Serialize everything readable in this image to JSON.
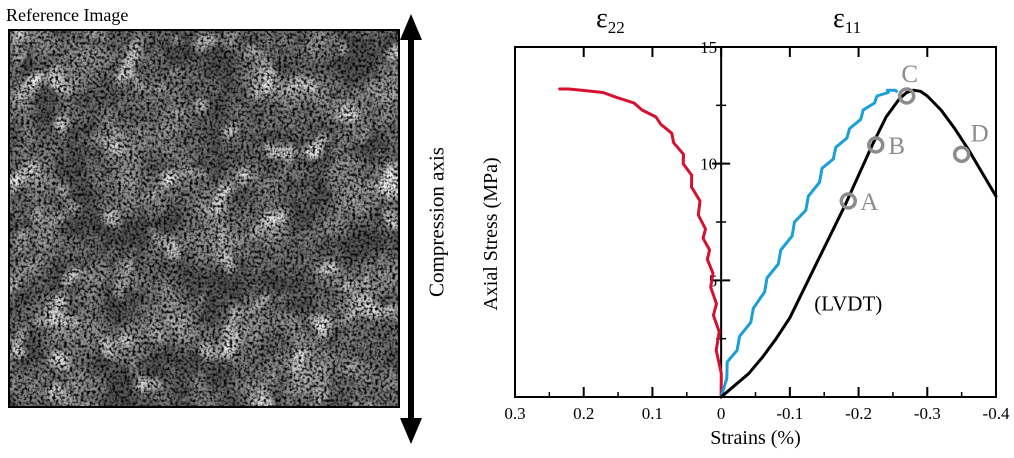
{
  "reference_image": {
    "label": "Reference Image"
  },
  "compression_axis": {
    "label": "Compression axis"
  },
  "panel_titles": {
    "eps22": {
      "symbol": "ε",
      "subscript": "22"
    },
    "eps11": {
      "symbol": "ε",
      "subscript": "11"
    }
  },
  "chart_data": {
    "type": "line",
    "title": "",
    "xlabel": "Strains (%)",
    "ylabel": "Axial Stress (MPa)",
    "xlim": [
      0.3,
      -0.4
    ],
    "ylim": [
      0,
      15
    ],
    "x_reversed": true,
    "x_ticks": [
      0.3,
      0.2,
      0.1,
      0,
      -0.1,
      -0.2,
      -0.3,
      -0.4
    ],
    "x_tick_labels": [
      "0.3",
      "0.2",
      "0.1",
      "0",
      "-0.1",
      "-0.2",
      "-0.3",
      "-0.4"
    ],
    "y_ticks": [
      5,
      10,
      15
    ],
    "y_tick_labels": [
      "5",
      "10",
      "15"
    ],
    "grid": false,
    "series": [
      {
        "color": "#d7102e",
        "x": [
          0.0,
          0.003,
          0.004,
          0.006,
          0.008,
          0.01,
          0.012,
          0.015,
          0.017,
          0.02,
          0.023,
          0.026,
          0.03,
          0.034,
          0.04,
          0.046,
          0.052,
          0.058,
          0.066,
          0.075,
          0.085,
          0.098,
          0.112,
          0.13,
          0.15,
          0.175,
          0.2,
          0.225,
          0.235
        ],
        "y": [
          0.0,
          1.0,
          2.0,
          2.8,
          3.5,
          4.0,
          4.7,
          5.3,
          5.9,
          6.3,
          6.8,
          7.2,
          7.8,
          8.4,
          9.0,
          9.5,
          10.0,
          10.4,
          10.9,
          11.3,
          11.7,
          12.0,
          12.3,
          12.6,
          12.85,
          13.05,
          13.15,
          13.2,
          13.2
        ]
      },
      {
        "color": "#1a9fd8",
        "x": [
          0.0,
          -0.005,
          -0.012,
          -0.02,
          -0.03,
          -0.04,
          -0.05,
          -0.06,
          -0.07,
          -0.08,
          -0.09,
          -0.1,
          -0.11,
          -0.12,
          -0.13,
          -0.14,
          -0.15,
          -0.16,
          -0.17,
          -0.18,
          -0.19,
          -0.2,
          -0.21,
          -0.22,
          -0.23,
          -0.24,
          -0.245,
          -0.25,
          -0.255
        ],
        "y": [
          0.0,
          0.8,
          1.5,
          2.0,
          2.6,
          3.2,
          3.8,
          4.5,
          5.1,
          5.7,
          6.3,
          6.9,
          7.5,
          8.0,
          8.6,
          9.2,
          9.8,
          10.2,
          10.7,
          11.1,
          11.5,
          11.9,
          12.3,
          12.6,
          12.9,
          13.05,
          13.15,
          13.15,
          13.1
        ]
      },
      {
        "name": "(LVDT)",
        "color": "#000000",
        "x": [
          0.0,
          -0.02,
          -0.04,
          -0.06,
          -0.08,
          -0.1,
          -0.12,
          -0.14,
          -0.16,
          -0.18,
          -0.2,
          -0.22,
          -0.24,
          -0.26,
          -0.27,
          -0.28,
          -0.29,
          -0.3,
          -0.32,
          -0.34,
          -0.36,
          -0.38,
          -0.4
        ],
        "y": [
          0.0,
          0.5,
          1.0,
          1.7,
          2.5,
          3.4,
          4.6,
          5.8,
          7.0,
          8.2,
          9.5,
          10.8,
          12.0,
          12.8,
          13.05,
          13.15,
          13.1,
          12.9,
          12.3,
          11.5,
          10.6,
          9.6,
          8.6
        ]
      }
    ],
    "annotations": [
      {
        "label": "A",
        "x": -0.185,
        "y": 8.4
      },
      {
        "label": "B",
        "x": -0.225,
        "y": 10.8
      },
      {
        "label": "C",
        "x": -0.27,
        "y": 12.9
      },
      {
        "label": "D",
        "x": -0.35,
        "y": 10.4
      }
    ],
    "series_labels": [
      {
        "text": "(LVDT)",
        "x": -0.185,
        "y": 4.0
      }
    ],
    "marker_color": "#8c8c8c"
  }
}
